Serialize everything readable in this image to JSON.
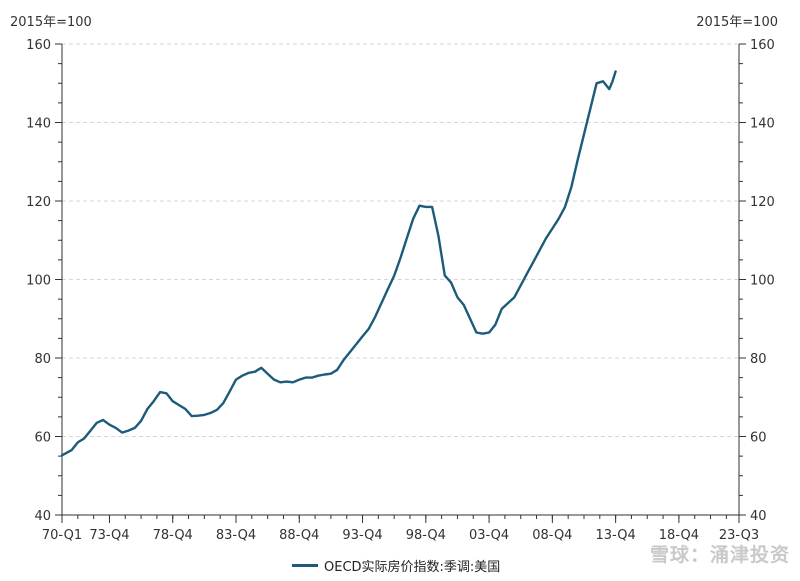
{
  "chart_data": {
    "type": "line",
    "ylabel_left": "2015年=100",
    "ylabel_right": "2015年=100",
    "ylim": [
      40,
      160
    ],
    "yticks": [
      40,
      60,
      80,
      100,
      120,
      140,
      160
    ],
    "x_tick_labels": [
      "70-Q1",
      "73-Q4",
      "78-Q4",
      "83-Q4",
      "88-Q4",
      "93-Q4",
      "98-Q4",
      "03-Q4",
      "08-Q4",
      "13-Q4",
      "18-Q4",
      "23-Q3"
    ],
    "x_tick_quarters": [
      0,
      15,
      35,
      55,
      75,
      95,
      115,
      135,
      155,
      175,
      195,
      214
    ],
    "x_range_quarters": [
      0,
      214
    ],
    "grid": true,
    "legend_position": "bottom",
    "series": [
      {
        "name": "OECD实际房价指数:季调:美国",
        "color": "#1c5b7a",
        "points": [
          [
            0,
            55.2
          ],
          [
            3,
            56.5
          ],
          [
            5,
            58.5
          ],
          [
            7,
            59.5
          ],
          [
            9,
            61.5
          ],
          [
            11,
            63.5
          ],
          [
            13,
            64.2
          ],
          [
            15,
            63
          ],
          [
            17,
            62.2
          ],
          [
            19,
            61
          ],
          [
            21,
            61.5
          ],
          [
            23,
            62.2
          ],
          [
            25,
            64
          ],
          [
            27,
            67
          ],
          [
            29,
            69
          ],
          [
            31,
            71.3
          ],
          [
            33,
            71
          ],
          [
            35,
            69
          ],
          [
            37,
            68
          ],
          [
            39,
            67
          ],
          [
            41,
            65.2
          ],
          [
            43,
            65.3
          ],
          [
            45,
            65.5
          ],
          [
            47,
            66
          ],
          [
            49,
            66.8
          ],
          [
            51,
            68.5
          ],
          [
            53,
            71.5
          ],
          [
            55,
            74.5
          ],
          [
            57,
            75.5
          ],
          [
            59,
            76.2
          ],
          [
            61,
            76.5
          ],
          [
            63,
            77.5
          ],
          [
            65,
            76
          ],
          [
            67,
            74.5
          ],
          [
            69,
            73.8
          ],
          [
            71,
            74
          ],
          [
            73,
            73.8
          ],
          [
            75,
            74.5
          ],
          [
            77,
            75
          ],
          [
            79,
            75
          ],
          [
            81,
            75.5
          ],
          [
            83,
            75.8
          ],
          [
            85,
            76
          ],
          [
            87,
            77
          ],
          [
            89,
            79.5
          ],
          [
            91,
            81.5
          ],
          [
            93,
            83.5
          ],
          [
            95,
            85.5
          ],
          [
            97,
            87.5
          ],
          [
            99,
            90.5
          ],
          [
            101,
            94
          ],
          [
            103,
            97.5
          ],
          [
            105,
            101
          ],
          [
            107,
            105.5
          ],
          [
            109,
            110.5
          ],
          [
            111,
            115.5
          ],
          [
            113,
            118.8
          ],
          [
            115,
            118.5
          ],
          [
            117,
            118.5
          ],
          [
            119,
            111
          ],
          [
            121,
            101
          ],
          [
            123,
            99.2
          ],
          [
            125,
            95.5
          ],
          [
            127,
            93.5
          ],
          [
            129,
            90
          ],
          [
            131,
            86.5
          ],
          [
            133,
            86.2
          ],
          [
            135,
            86.5
          ],
          [
            137,
            88.5
          ],
          [
            139,
            92.5
          ],
          [
            141,
            94
          ],
          [
            143,
            95.5
          ],
          [
            145,
            98.5
          ],
          [
            147,
            101.5
          ],
          [
            149,
            104.5
          ],
          [
            151,
            107.5
          ],
          [
            153,
            110.5
          ],
          [
            155,
            113
          ],
          [
            157,
            115.5
          ],
          [
            159,
            118.5
          ],
          [
            161,
            123.5
          ],
          [
            163,
            130.5
          ],
          [
            165,
            137
          ],
          [
            167,
            143.5
          ],
          [
            169,
            150
          ],
          [
            171,
            150.5
          ],
          [
            173,
            148.5
          ],
          [
            174,
            150.5
          ],
          [
            175,
            153
          ]
        ]
      }
    ]
  },
  "watermark": "雪球：涌津投资"
}
